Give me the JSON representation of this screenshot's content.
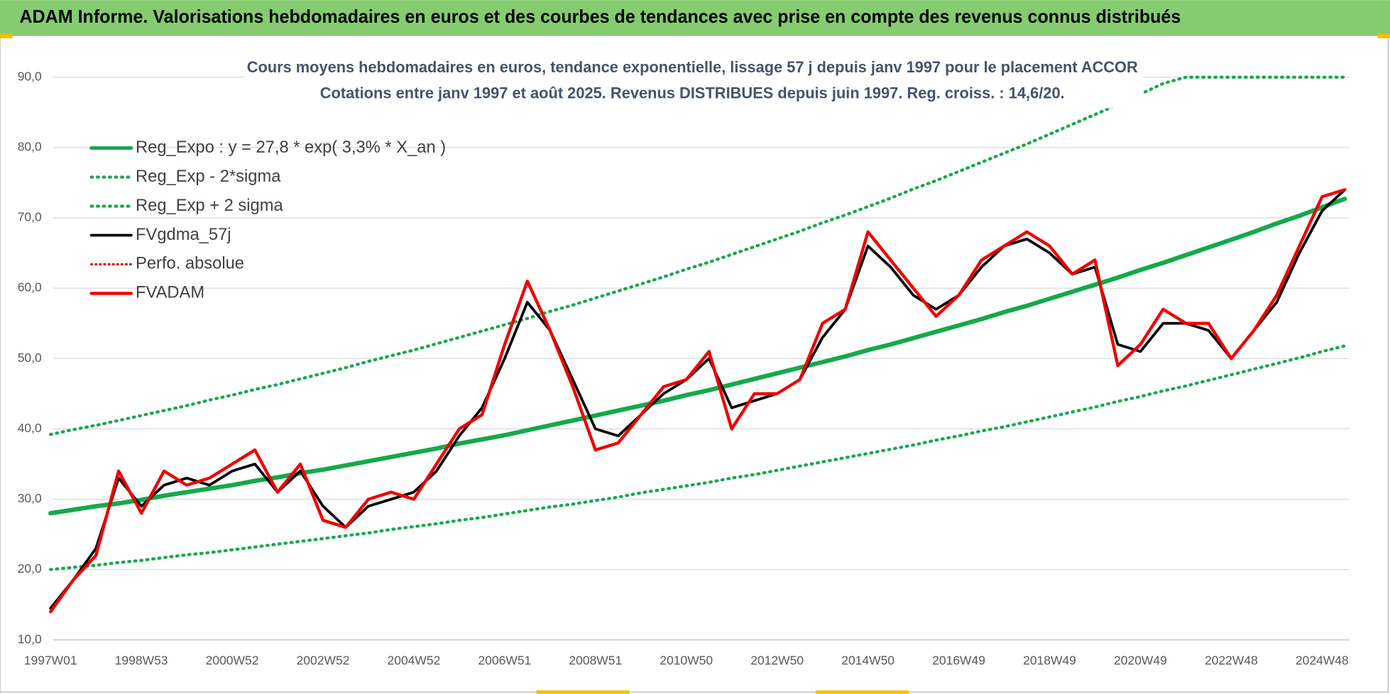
{
  "banner": "ADAM Informe. Valorisations hebdomadaires en euros et des courbes de tendances avec prise en compte des revenus connus distribués",
  "chart_data": {
    "type": "line",
    "title": "Cours moyens hebdomadaires en euros, tendance exponentielle, lissage 57 j depuis janv 1997  pour le placement ACCOR",
    "subtitle": "Cotations entre janv 1997 et août 2025.  Revenus DISTRIBUES depuis juin 1997.  Reg. croiss. : 14,6/20.",
    "categories": [
      "1997W01",
      null,
      null,
      null,
      "1998W53",
      null,
      null,
      null,
      "2000W52",
      null,
      null,
      null,
      "2002W52",
      null,
      null,
      null,
      "2004W52",
      null,
      null,
      null,
      "2006W51",
      null,
      null,
      null,
      "2008W51",
      null,
      null,
      null,
      "2010W50",
      null,
      null,
      null,
      "2012W50",
      null,
      null,
      null,
      "2014W50",
      null,
      null,
      null,
      "2016W49",
      null,
      null,
      null,
      "2018W49",
      null,
      null,
      null,
      "2020W49",
      null,
      null,
      null,
      "2022W48",
      null,
      null,
      null,
      "2024W48",
      null
    ],
    "ylim": [
      10,
      90
    ],
    "yticks": [
      {
        "value": 10,
        "label": "10,0"
      },
      {
        "value": 20,
        "label": "20,0"
      },
      {
        "value": 30,
        "label": "30,0"
      },
      {
        "value": 40,
        "label": "40,0"
      },
      {
        "value": 50,
        "label": "50,0"
      },
      {
        "value": 60,
        "label": "60,0"
      },
      {
        "value": 70,
        "label": "70,0"
      },
      {
        "value": 80,
        "label": "80,0"
      },
      {
        "value": 90,
        "label": "90,0"
      }
    ],
    "grid": true,
    "legend": "upper left",
    "series": [
      {
        "name": "Reg_Expo : y = 27,8 * exp( 3,3% *  X_an )",
        "color": "#16a84c",
        "style": "solid",
        "width": 5,
        "values": [
          28.0,
          28.5,
          29.0,
          29.4,
          29.9,
          30.5,
          31.0,
          31.5,
          32.0,
          32.6,
          33.1,
          33.7,
          34.2,
          34.8,
          35.4,
          36.0,
          36.6,
          37.2,
          37.9,
          38.5,
          39.1,
          39.8,
          40.5,
          41.2,
          41.9,
          42.6,
          43.3,
          44.0,
          44.8,
          45.5,
          46.3,
          47.1,
          47.9,
          48.7,
          49.5,
          50.3,
          51.2,
          52.0,
          52.9,
          53.8,
          54.7,
          55.6,
          56.6,
          57.5,
          58.5,
          59.5,
          60.5,
          61.5,
          62.6,
          63.6,
          64.7,
          65.8,
          66.9,
          68.0,
          69.2,
          70.3,
          71.5,
          72.7
        ]
      },
      {
        "name": "Reg_Exp - 2*sigma",
        "color": "#16a84c",
        "style": "dotted",
        "width": 3.5,
        "values": [
          20.0,
          20.3,
          20.6,
          21.0,
          21.3,
          21.7,
          22.1,
          22.4,
          22.8,
          23.2,
          23.6,
          24.0,
          24.4,
          24.8,
          25.2,
          25.7,
          26.1,
          26.5,
          27.0,
          27.4,
          27.9,
          28.4,
          28.9,
          29.3,
          29.8,
          30.3,
          30.9,
          31.4,
          31.9,
          32.4,
          33.0,
          33.5,
          34.1,
          34.7,
          35.3,
          35.9,
          36.5,
          37.1,
          37.7,
          38.4,
          39.0,
          39.7,
          40.3,
          41.0,
          41.7,
          42.4,
          43.1,
          43.9,
          44.6,
          45.4,
          46.1,
          46.9,
          47.7,
          48.5,
          49.3,
          50.1,
          51.0,
          51.8
        ]
      },
      {
        "name": "Reg_Exp + 2 sigma",
        "color": "#16a84c",
        "style": "dotted",
        "width": 3.5,
        "values": [
          39.2,
          39.9,
          40.5,
          41.2,
          41.9,
          42.6,
          43.3,
          44.1,
          44.8,
          45.6,
          46.3,
          47.1,
          47.9,
          48.7,
          49.6,
          50.4,
          51.2,
          52.1,
          53.0,
          53.9,
          54.8,
          55.7,
          56.7,
          57.6,
          58.6,
          59.6,
          60.6,
          61.6,
          62.7,
          63.7,
          64.8,
          65.9,
          67.0,
          68.1,
          69.3,
          70.4,
          71.6,
          72.8,
          74.1,
          75.3,
          76.6,
          77.9,
          79.2,
          80.5,
          81.9,
          83.3,
          84.7,
          86.1,
          87.6,
          89.1,
          90.0,
          90.0,
          90.0,
          90.0,
          90.0,
          90.0,
          90.0,
          90.0
        ]
      },
      {
        "name": "FVgdma_57j",
        "color": "#000000",
        "style": "solid",
        "width": 3,
        "values": [
          14.5,
          18.5,
          23,
          33,
          29,
          32,
          33,
          32,
          34,
          35,
          31,
          34,
          29,
          26,
          29,
          30,
          31,
          34,
          39,
          43,
          50,
          58,
          54,
          47,
          40,
          39,
          42,
          45,
          47,
          50,
          43,
          44,
          45,
          47,
          53,
          57,
          66,
          63,
          59,
          57,
          59,
          63,
          66,
          67,
          65,
          62,
          63,
          52,
          51,
          55,
          55,
          54,
          50,
          54,
          58,
          65,
          71,
          74
        ]
      },
      {
        "name": "Perfo. absolue",
        "color": "#e00000",
        "style": "dotted",
        "width": 2.5,
        "values": [
          null,
          null,
          null,
          null,
          null,
          null,
          null,
          null,
          null,
          null,
          null,
          null,
          null,
          null,
          null,
          null,
          null,
          null,
          null,
          null,
          null,
          null,
          null,
          null,
          null,
          null,
          null,
          null,
          null,
          null,
          null,
          null,
          null,
          null,
          null,
          null,
          null,
          null,
          null,
          null,
          null,
          null,
          null,
          null,
          null,
          null,
          null,
          null,
          null,
          null,
          null,
          null,
          null,
          null,
          null,
          null,
          null,
          null
        ]
      },
      {
        "name": "FVADAM",
        "color": "#f00000",
        "style": "solid",
        "width": 3.5,
        "values": [
          14,
          18.5,
          22,
          34,
          28,
          34,
          32,
          33,
          35,
          37,
          31,
          35,
          27,
          26,
          30,
          31,
          30,
          35,
          40,
          42,
          52,
          61,
          54,
          46,
          37,
          38,
          42,
          46,
          47,
          51,
          40,
          45,
          45,
          47,
          55,
          57,
          68,
          64,
          60,
          56,
          59,
          64,
          66,
          68,
          66,
          62,
          64,
          49,
          52,
          57,
          55,
          55,
          50,
          54,
          59,
          66,
          73,
          74
        ]
      }
    ]
  }
}
